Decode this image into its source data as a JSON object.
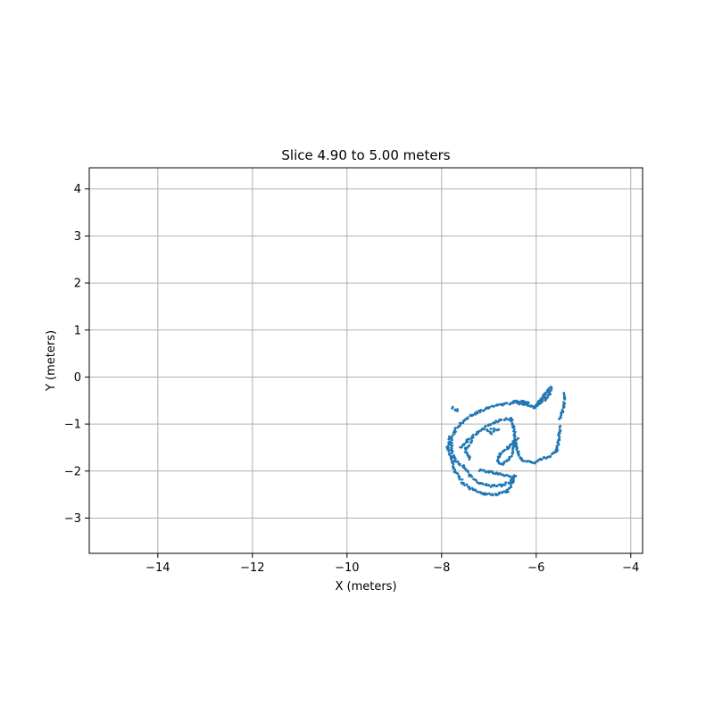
{
  "chart_data": {
    "type": "scatter",
    "title": "Slice 4.90 to 5.00 meters",
    "xlabel": "X (meters)",
    "ylabel": "Y (meters)",
    "xlim": [
      -15.45,
      -3.75
    ],
    "ylim": [
      -3.75,
      4.45
    ],
    "xticks": [
      -14,
      -12,
      -10,
      -8,
      -6,
      -4
    ],
    "yticks": [
      -3,
      -2,
      -1,
      0,
      1,
      2,
      3,
      4
    ],
    "xtick_labels": [
      "−14",
      "−12",
      "−10",
      "−8",
      "−6",
      "−4"
    ],
    "ytick_labels": [
      "−3",
      "−2",
      "−1",
      "0",
      "1",
      "2",
      "3",
      "4"
    ],
    "grid": true,
    "series": [
      {
        "color": "#1f77b4",
        "marker_size_pt": 2,
        "strokes": [
          [
            [
              -7.0,
              -0.65
            ],
            [
              -6.7,
              -0.58
            ],
            [
              -6.4,
              -0.55
            ],
            [
              -6.2,
              -0.58
            ],
            [
              -6.05,
              -0.65
            ]
          ],
          [
            [
              -7.0,
              -0.65
            ],
            [
              -7.25,
              -0.75
            ],
            [
              -7.5,
              -0.9
            ],
            [
              -7.7,
              -1.1
            ],
            [
              -7.8,
              -1.35
            ],
            [
              -7.78,
              -1.6
            ],
            [
              -7.7,
              -1.8
            ],
            [
              -7.55,
              -1.9
            ]
          ],
          [
            [
              -7.82,
              -1.25
            ],
            [
              -7.87,
              -1.5
            ],
            [
              -7.8,
              -1.75
            ],
            [
              -7.72,
              -2.0
            ]
          ],
          [
            [
              -7.72,
              -2.0
            ],
            [
              -7.55,
              -2.25
            ],
            [
              -7.35,
              -2.4
            ],
            [
              -7.1,
              -2.48
            ],
            [
              -6.85,
              -2.5
            ],
            [
              -6.6,
              -2.42
            ]
          ],
          [
            [
              -7.55,
              -1.9
            ],
            [
              -7.4,
              -2.1
            ],
            [
              -7.22,
              -2.25
            ],
            [
              -6.95,
              -2.32
            ],
            [
              -6.7,
              -2.3
            ],
            [
              -6.55,
              -2.22
            ],
            [
              -6.45,
              -2.1
            ]
          ],
          [
            [
              -7.2,
              -1.98
            ],
            [
              -6.95,
              -2.02
            ],
            [
              -6.7,
              -2.08
            ],
            [
              -6.5,
              -2.12
            ]
          ],
          [
            [
              -7.6,
              -1.5
            ],
            [
              -7.45,
              -1.35
            ],
            [
              -7.25,
              -1.2
            ],
            [
              -7.0,
              -1.02
            ],
            [
              -6.75,
              -0.92
            ],
            [
              -6.55,
              -0.88
            ]
          ],
          [
            [
              -6.45,
              -2.1
            ],
            [
              -6.55,
              -2.35
            ],
            [
              -6.62,
              -2.45
            ]
          ],
          [
            [
              -7.35,
              -1.35
            ],
            [
              -7.5,
              -1.55
            ],
            [
              -7.4,
              -1.75
            ]
          ],
          [
            [
              -7.05,
              -1.1
            ],
            [
              -6.95,
              -1.2
            ],
            [
              -6.9,
              -1.15
            ]
          ],
          [
            [
              -6.95,
              -1.12
            ],
            [
              -6.8,
              -1.12
            ]
          ],
          [
            [
              -6.05,
              -0.65
            ],
            [
              -5.95,
              -0.55
            ],
            [
              -5.85,
              -0.4
            ],
            [
              -5.75,
              -0.3
            ],
            [
              -5.68,
              -0.22
            ]
          ],
          [
            [
              -5.68,
              -0.22
            ],
            [
              -5.72,
              -0.35
            ],
            [
              -5.82,
              -0.48
            ],
            [
              -5.95,
              -0.58
            ],
            [
              -6.05,
              -0.65
            ]
          ],
          [
            [
              -6.15,
              -0.55
            ],
            [
              -6.3,
              -0.52
            ],
            [
              -6.5,
              -0.53
            ]
          ],
          [
            [
              -5.42,
              -0.35
            ],
            [
              -5.4,
              -0.55
            ],
            [
              -5.45,
              -0.75
            ],
            [
              -5.5,
              -0.9
            ]
          ],
          [
            [
              -5.5,
              -1.05
            ],
            [
              -5.52,
              -1.3
            ],
            [
              -5.55,
              -1.5
            ],
            [
              -5.58,
              -1.6
            ]
          ],
          [
            [
              -5.58,
              -1.6
            ],
            [
              -5.72,
              -1.68
            ],
            [
              -5.9,
              -1.75
            ],
            [
              -6.05,
              -1.82
            ],
            [
              -6.2,
              -1.8
            ],
            [
              -6.32,
              -1.75
            ],
            [
              -6.38,
              -1.62
            ],
            [
              -6.42,
              -1.45
            ],
            [
              -6.45,
              -1.25
            ],
            [
              -6.48,
              -1.05
            ],
            [
              -6.52,
              -0.92
            ],
            [
              -6.55,
              -0.88
            ]
          ],
          [
            [
              -6.4,
              -1.3
            ],
            [
              -6.6,
              -1.5
            ],
            [
              -6.78,
              -1.65
            ],
            [
              -6.82,
              -1.8
            ],
            [
              -6.72,
              -1.85
            ],
            [
              -6.55,
              -1.72
            ],
            [
              -6.48,
              -1.5
            ],
            [
              -6.45,
              -1.35
            ]
          ],
          [
            [
              -7.78,
              -0.65
            ],
            [
              -7.65,
              -0.72
            ]
          ]
        ]
      }
    ]
  }
}
